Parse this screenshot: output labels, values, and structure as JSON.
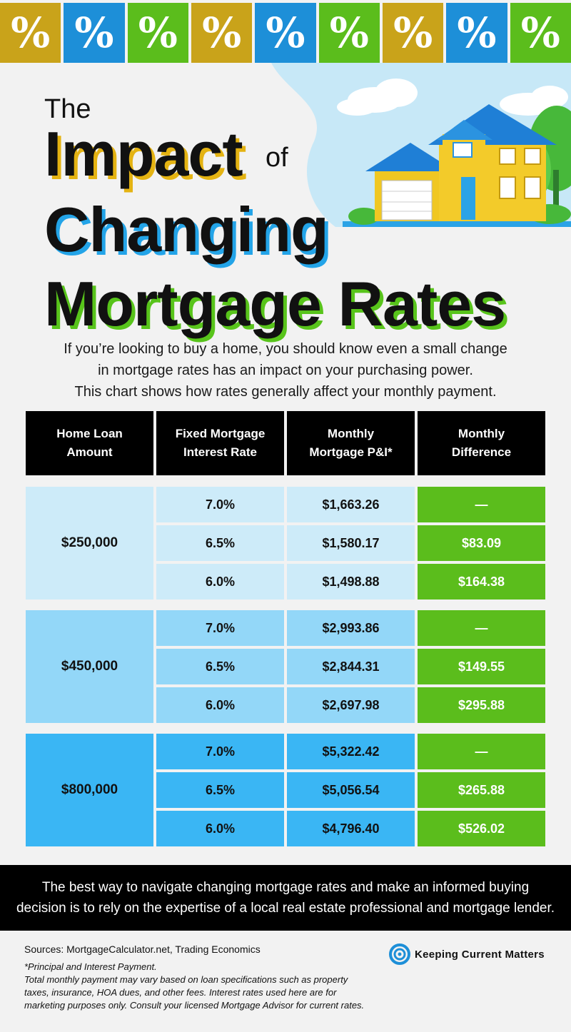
{
  "tiles": [
    {
      "glyph": "%",
      "color": "#c9a31a"
    },
    {
      "glyph": "%",
      "color": "#1d8fd8"
    },
    {
      "glyph": "%",
      "color": "#5bbd1c"
    },
    {
      "glyph": "%",
      "color": "#c9a31a"
    },
    {
      "glyph": "%",
      "color": "#1d8fd8"
    },
    {
      "glyph": "%",
      "color": "#5bbd1c"
    },
    {
      "glyph": "%",
      "color": "#c9a31a"
    },
    {
      "glyph": "%",
      "color": "#1d8fd8"
    },
    {
      "glyph": "%",
      "color": "#5bbd1c"
    }
  ],
  "title": {
    "the": "The",
    "impact": "Impact",
    "of": "of",
    "changing": "Changing",
    "mortgage_rates": "Mortgage Rates"
  },
  "intro": [
    "If you’re looking to buy a home, you should know even a small change",
    "in mortgage rates has an impact on your purchasing power.",
    "This chart shows how rates generally affect your monthly payment."
  ],
  "table": {
    "headers": [
      [
        "Home Loan",
        "Amount"
      ],
      [
        "Fixed Mortgage",
        "Interest Rate"
      ],
      [
        "Monthly",
        "Mortgage P&I*"
      ],
      [
        "Monthly",
        "Difference"
      ]
    ],
    "groups": [
      {
        "amount": "$250,000",
        "rows": [
          {
            "rate": "7.0%",
            "payment": "$1,663.26",
            "difference": "—"
          },
          {
            "rate": "6.5%",
            "payment": "$1,580.17",
            "difference": "$83.09"
          },
          {
            "rate": "6.0%",
            "payment": "$1,498.88",
            "difference": "$164.38"
          }
        ]
      },
      {
        "amount": "$450,000",
        "rows": [
          {
            "rate": "7.0%",
            "payment": "$2,993.86",
            "difference": "—"
          },
          {
            "rate": "6.5%",
            "payment": "$2,844.31",
            "difference": "$149.55"
          },
          {
            "rate": "6.0%",
            "payment": "$2,697.98",
            "difference": "$295.88"
          }
        ]
      },
      {
        "amount": "$800,000",
        "rows": [
          {
            "rate": "7.0%",
            "payment": "$5,322.42",
            "difference": "—"
          },
          {
            "rate": "6.5%",
            "payment": "$5,056.54",
            "difference": "$265.88"
          },
          {
            "rate": "6.0%",
            "payment": "$4,796.40",
            "difference": "$526.02"
          }
        ]
      }
    ]
  },
  "banner": [
    "The best way to navigate changing mortgage rates and make an informed buying",
    "decision is to rely on the expertise of a local real estate professional and mortgage lender."
  ],
  "sources": "Sources: MortgageCalculator.net, Trading Economics",
  "notes": [
    "*Principal and Interest Payment.",
    "Total monthly payment may vary based on loan specifications such as property",
    "taxes, insurance, HOA dues, and other fees. Interest rates used here are for",
    "marketing purposes only. Consult your licensed Mortgage Advisor for current rates."
  ],
  "brand": {
    "name": "Keeping Current Matters",
    "icon": "kcm-swirl-logo"
  }
}
